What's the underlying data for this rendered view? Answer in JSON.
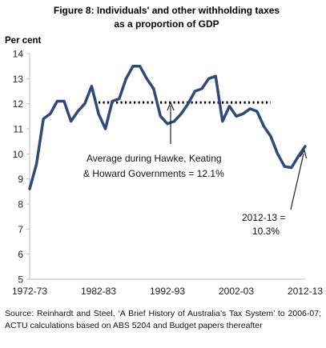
{
  "chart_data": {
    "type": "line",
    "title_line1": "Figure 8: Individuals' and other withholding taxes",
    "title_line2": "as a proportion of GDP",
    "ylabel": "Per cent",
    "ylim": [
      5,
      14
    ],
    "yticks": [
      5,
      6,
      7,
      8,
      9,
      10,
      11,
      12,
      13,
      14
    ],
    "xlim": [
      1972,
      2012
    ],
    "xticks": [
      {
        "x": 1972,
        "label": "1972-73"
      },
      {
        "x": 1982,
        "label": "1982-83"
      },
      {
        "x": 1992,
        "label": "1992-93"
      },
      {
        "x": 2002,
        "label": "2002-03"
      },
      {
        "x": 2012,
        "label": "2012-13"
      }
    ],
    "grid": false,
    "series": [
      {
        "color": "#2e4a7a",
        "x": [
          1972,
          1973,
          1974,
          1975,
          1976,
          1977,
          1978,
          1979,
          1980,
          1981,
          1982,
          1983,
          1984,
          1985,
          1986,
          1987,
          1988,
          1989,
          1990,
          1991,
          1992,
          1993,
          1994,
          1995,
          1996,
          1997,
          1998,
          1999,
          2000,
          2001,
          2002,
          2003,
          2004,
          2005,
          2006,
          2007,
          2008,
          2009,
          2010,
          2011,
          2012
        ],
        "values": [
          8.6,
          9.6,
          11.4,
          11.6,
          12.1,
          12.1,
          11.3,
          11.7,
          12.0,
          12.7,
          11.6,
          11.0,
          12.1,
          12.2,
          13.0,
          13.5,
          13.5,
          13.0,
          12.6,
          11.5,
          11.2,
          11.3,
          11.6,
          12.0,
          12.5,
          12.6,
          13.0,
          13.1,
          11.3,
          11.9,
          11.5,
          11.6,
          11.8,
          11.7,
          11.1,
          10.7,
          10.0,
          9.5,
          9.45,
          9.9,
          10.3
        ]
      }
    ],
    "average": {
      "value": 12.05,
      "x_start": 1982,
      "x_end": 2007,
      "color": "#000000"
    },
    "annotations": {
      "average_line1": "Average during Hawke, Keating",
      "average_line2": "& Howard Governments  = 12.1%",
      "end_line1": "2012-13 =",
      "end_line2": "10.3%"
    }
  },
  "source_note": "Source: Reinhardt and Steel, ‘A Brief History of Australia’s Tax System’ to 2006-07; ACTU calculations based on ABS 5204 and Budget papers thereafter"
}
